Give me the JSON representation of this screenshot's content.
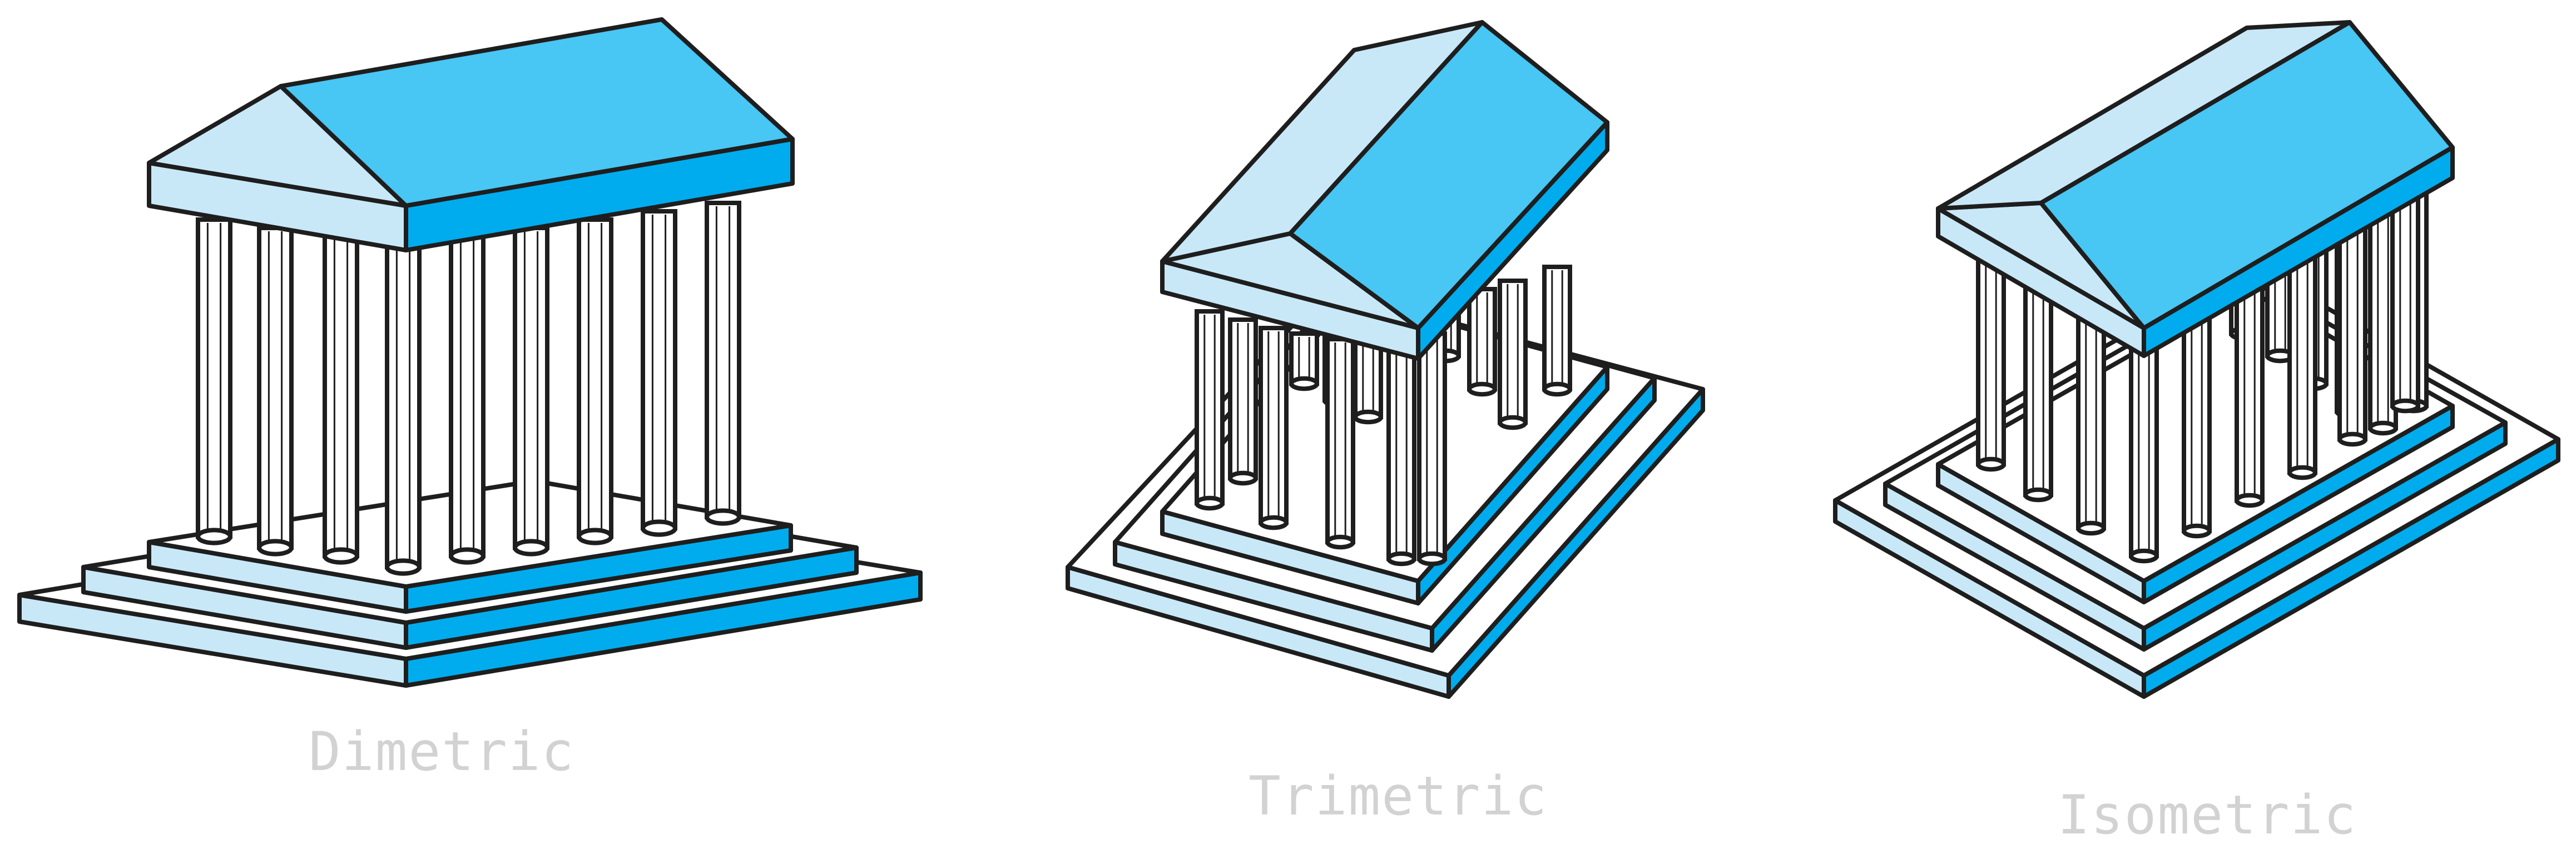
{
  "figure": {
    "subject": "temple",
    "colors": {
      "light": "#c8e8f8",
      "mid": "#48c6f4",
      "dark": "#00aced",
      "outline": "#1e1e1e",
      "column": "#ffffff",
      "caption": "#d2d2d2"
    },
    "panels": [
      {
        "id": "dimetric",
        "label": "Dimetric"
      },
      {
        "id": "trimetric",
        "label": "Trimetric"
      },
      {
        "id": "isometric",
        "label": "Isometric"
      }
    ]
  }
}
